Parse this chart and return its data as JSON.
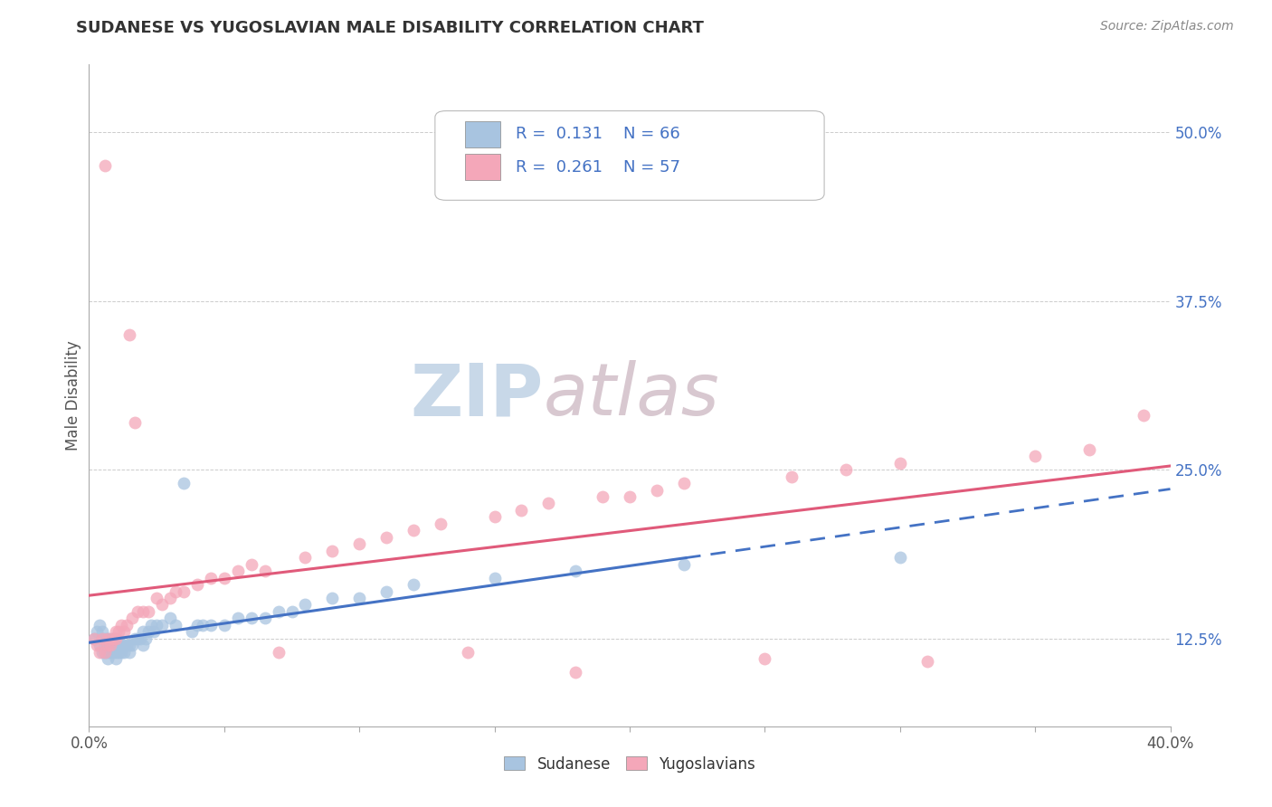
{
  "title": "SUDANESE VS YUGOSLAVIAN MALE DISABILITY CORRELATION CHART",
  "source": "Source: ZipAtlas.com",
  "ylabel": "Male Disability",
  "xlim": [
    0.0,
    0.4
  ],
  "ylim": [
    0.06,
    0.55
  ],
  "xticks": [
    0.0,
    0.05,
    0.1,
    0.15,
    0.2,
    0.25,
    0.3,
    0.35,
    0.4
  ],
  "xtick_labels": [
    "0.0%",
    "",
    "",
    "",
    "",
    "",
    "",
    "",
    "40.0%"
  ],
  "yticks": [
    0.125,
    0.25,
    0.375,
    0.5
  ],
  "ytick_labels": [
    "12.5%",
    "25.0%",
    "37.5%",
    "50.0%"
  ],
  "sudanese_R": 0.131,
  "sudanese_N": 66,
  "yugoslavian_R": 0.261,
  "yugoslavian_N": 57,
  "sudanese_color": "#a8c4e0",
  "yugoslavian_color": "#f4a7b9",
  "sudanese_line_color": "#4472c4",
  "yugoslavian_line_color": "#e05a7a",
  "background_color": "#ffffff",
  "grid_color": "#cccccc",
  "watermark_zip": "ZIP",
  "watermark_atlas": "atlas",
  "watermark_color_zip": "#c8d8e8",
  "watermark_color_atlas": "#d8c8d0",
  "legend_text_color": "#4472c4",
  "title_color": "#333333",
  "source_color": "#888888",
  "ylabel_color": "#555555",
  "tick_label_color": "#4472c4",
  "xtick_color": "#555555",
  "sudanese_x": [
    0.002,
    0.003,
    0.004,
    0.004,
    0.005,
    0.005,
    0.005,
    0.006,
    0.006,
    0.006,
    0.007,
    0.007,
    0.007,
    0.007,
    0.008,
    0.008,
    0.008,
    0.009,
    0.009,
    0.009,
    0.01,
    0.01,
    0.01,
    0.011,
    0.011,
    0.012,
    0.012,
    0.013,
    0.013,
    0.014,
    0.015,
    0.015,
    0.016,
    0.017,
    0.018,
    0.019,
    0.02,
    0.02,
    0.021,
    0.022,
    0.023,
    0.024,
    0.025,
    0.027,
    0.03,
    0.032,
    0.035,
    0.038,
    0.04,
    0.042,
    0.045,
    0.05,
    0.055,
    0.06,
    0.065,
    0.07,
    0.075,
    0.08,
    0.09,
    0.1,
    0.11,
    0.12,
    0.15,
    0.18,
    0.22,
    0.3
  ],
  "sudanese_y": [
    0.125,
    0.13,
    0.12,
    0.135,
    0.115,
    0.125,
    0.13,
    0.115,
    0.12,
    0.125,
    0.11,
    0.115,
    0.12,
    0.125,
    0.115,
    0.12,
    0.125,
    0.115,
    0.12,
    0.125,
    0.11,
    0.115,
    0.125,
    0.115,
    0.12,
    0.115,
    0.12,
    0.115,
    0.12,
    0.12,
    0.115,
    0.12,
    0.12,
    0.125,
    0.125,
    0.125,
    0.13,
    0.12,
    0.125,
    0.13,
    0.135,
    0.13,
    0.135,
    0.135,
    0.14,
    0.135,
    0.24,
    0.13,
    0.135,
    0.135,
    0.135,
    0.135,
    0.14,
    0.14,
    0.14,
    0.145,
    0.145,
    0.15,
    0.155,
    0.155,
    0.16,
    0.165,
    0.17,
    0.175,
    0.18,
    0.185
  ],
  "yugoslavian_x": [
    0.002,
    0.003,
    0.004,
    0.005,
    0.006,
    0.006,
    0.007,
    0.007,
    0.008,
    0.009,
    0.01,
    0.01,
    0.011,
    0.012,
    0.013,
    0.014,
    0.015,
    0.016,
    0.017,
    0.018,
    0.02,
    0.022,
    0.025,
    0.027,
    0.03,
    0.032,
    0.035,
    0.04,
    0.045,
    0.05,
    0.055,
    0.06,
    0.065,
    0.07,
    0.08,
    0.09,
    0.1,
    0.11,
    0.12,
    0.13,
    0.14,
    0.15,
    0.16,
    0.17,
    0.18,
    0.19,
    0.2,
    0.21,
    0.22,
    0.25,
    0.26,
    0.28,
    0.3,
    0.31,
    0.35,
    0.37,
    0.39
  ],
  "yugoslavian_y": [
    0.125,
    0.12,
    0.115,
    0.125,
    0.475,
    0.115,
    0.12,
    0.125,
    0.12,
    0.125,
    0.125,
    0.13,
    0.13,
    0.135,
    0.13,
    0.135,
    0.35,
    0.14,
    0.285,
    0.145,
    0.145,
    0.145,
    0.155,
    0.15,
    0.155,
    0.16,
    0.16,
    0.165,
    0.17,
    0.17,
    0.175,
    0.18,
    0.175,
    0.115,
    0.185,
    0.19,
    0.195,
    0.2,
    0.205,
    0.21,
    0.115,
    0.215,
    0.22,
    0.225,
    0.1,
    0.23,
    0.23,
    0.235,
    0.24,
    0.11,
    0.245,
    0.25,
    0.255,
    0.108,
    0.26,
    0.265,
    0.29
  ],
  "sudanese_line_start": 0.0,
  "sudanese_line_end": 0.4,
  "sudanese_line_solid_end": 0.22,
  "yugoslavian_line_start": 0.0,
  "yugoslavian_line_end": 0.4
}
